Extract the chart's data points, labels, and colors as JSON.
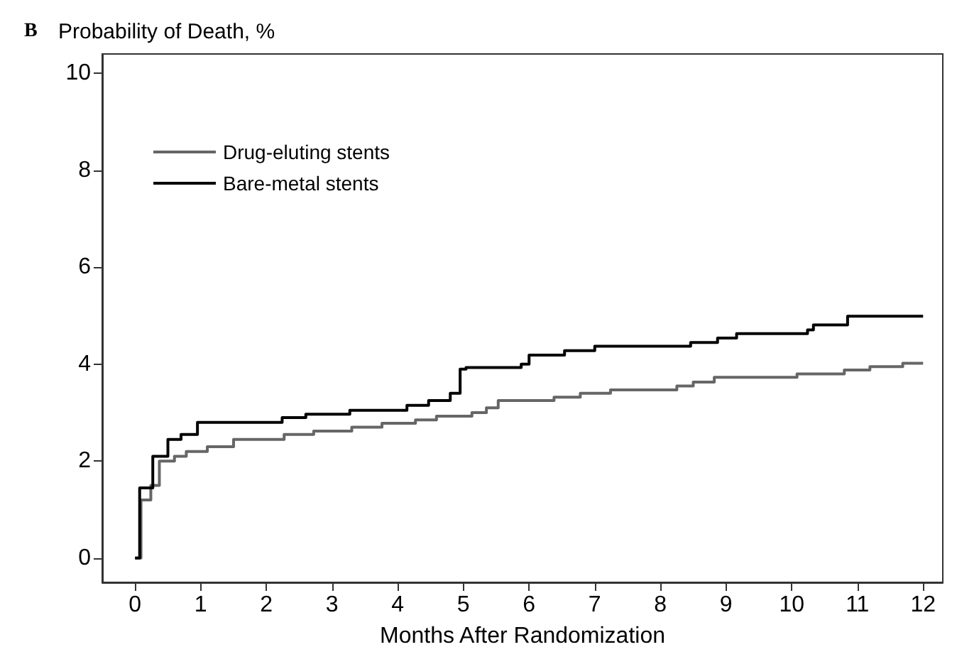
{
  "chart_data": {
    "type": "step",
    "title": "B",
    "ylabel": "Probability of Death, %",
    "xlabel": "Months After Randomization",
    "xlim": [
      -0.5,
      12.3
    ],
    "xticks": [
      0,
      1,
      2,
      3,
      4,
      5,
      6,
      7,
      8,
      9,
      10,
      11,
      12
    ],
    "ylim": [
      -0.5,
      10.4
    ],
    "yticks": [
      0,
      2,
      4,
      6,
      8,
      10
    ],
    "grid": false,
    "legend": "top left",
    "marker": "none",
    "line_style": "solid",
    "series": [
      {
        "name": "Drug-eluting stents",
        "color": "#666666",
        "x": [
          0,
          0.09,
          0.24,
          0.37,
          0.6,
          0.78,
          1.1,
          1.5,
          2.27,
          2.72,
          3.3,
          3.76,
          4.27,
          4.59,
          5.13,
          5.35,
          5.53,
          6.38,
          6.78,
          7.24,
          8.25,
          8.5,
          8.82,
          10.08,
          10.8,
          11.19,
          11.69,
          12
        ],
        "values": [
          0,
          1.2,
          1.5,
          2.0,
          2.1,
          2.2,
          2.3,
          2.45,
          2.55,
          2.62,
          2.7,
          2.78,
          2.85,
          2.93,
          3.0,
          3.1,
          3.25,
          3.32,
          3.4,
          3.47,
          3.55,
          3.63,
          3.73,
          3.8,
          3.88,
          3.95,
          4.02,
          4.02
        ]
      },
      {
        "name": "Bare-metal stents",
        "color": "#000000",
        "x": [
          0,
          0.07,
          0.27,
          0.5,
          0.7,
          0.95,
          2.24,
          2.6,
          3.27,
          4.14,
          4.47,
          4.8,
          4.95,
          5.04,
          5.88,
          6.0,
          6.54,
          7.0,
          8.46,
          8.87,
          9.16,
          10.24,
          10.33,
          10.85,
          12
        ],
        "values": [
          0,
          1.45,
          2.1,
          2.45,
          2.55,
          2.8,
          2.9,
          2.97,
          3.05,
          3.15,
          3.25,
          3.4,
          3.9,
          3.93,
          4.0,
          4.19,
          4.28,
          4.37,
          4.45,
          4.54,
          4.63,
          4.71,
          4.81,
          4.99,
          4.99
        ]
      }
    ]
  }
}
